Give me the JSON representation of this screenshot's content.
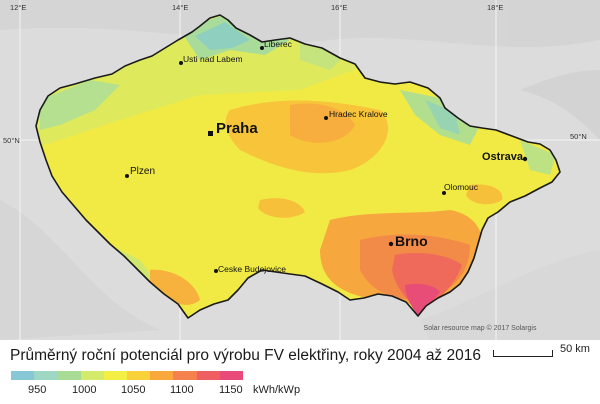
{
  "map": {
    "grid_longitudes": [
      "12°E",
      "14°E",
      "16°E",
      "18°E"
    ],
    "grid_latitudes": [
      "50°N",
      "50°N"
    ],
    "cities": [
      {
        "name": "Praha",
        "major": true
      },
      {
        "name": "Brno",
        "major": true
      },
      {
        "name": "Ostrava",
        "major": true
      },
      {
        "name": "Liberec",
        "major": false
      },
      {
        "name": "Usti nad Labem",
        "major": false
      },
      {
        "name": "Hradec Kralove",
        "major": false
      },
      {
        "name": "Plzen",
        "major": false
      },
      {
        "name": "Olomouc",
        "major": false
      },
      {
        "name": "Ceske Budejovice",
        "major": false
      }
    ],
    "credit": "Solar resource map © 2017 Solargis"
  },
  "caption": "Průměrný roční potenciál pro výrobu FV elektřiny, roky 2004 až 2016",
  "legend": {
    "colors": [
      "#88c7d6",
      "#9ed8c4",
      "#a8dc96",
      "#d4ea6a",
      "#f4ef44",
      "#f9d23a",
      "#f9a83c",
      "#f4814e",
      "#ef5f61",
      "#e84a7a"
    ],
    "tick_labels": [
      "950",
      "1000",
      "1050",
      "1100",
      "1150"
    ],
    "unit": "kWh/kWp"
  },
  "scale": {
    "label": "50 km"
  }
}
